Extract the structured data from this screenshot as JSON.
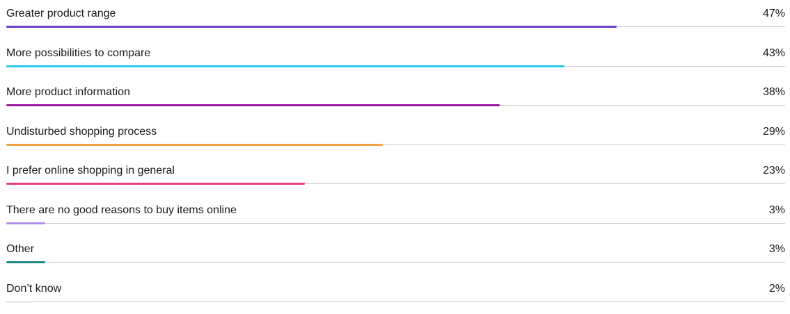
{
  "chart_data": {
    "type": "bar",
    "orientation": "horizontal",
    "title": "",
    "xlabel": "",
    "ylabel": "",
    "xlim": [
      0,
      60
    ],
    "unit": "%",
    "categories": [
      "Greater product range",
      "More possibilities to compare",
      "More product information",
      "Undisturbed shopping process",
      "I prefer online shopping in general",
      "There are no good reasons to buy items online",
      "Other",
      "Don’t know"
    ],
    "values": [
      47,
      43,
      38,
      29,
      23,
      3,
      3,
      2
    ],
    "value_labels": [
      "47%",
      "43%",
      "38%",
      "29%",
      "23%",
      "3%",
      "3%",
      "2%"
    ],
    "colors": [
      "#6a3fc7",
      "#29c6e6",
      "#9b1aa0",
      "#f2a244",
      "#ec3f7a",
      "#b08ee6",
      "#1c8a8a",
      "#e8e8e8"
    ],
    "grid": false,
    "legend": "none"
  }
}
